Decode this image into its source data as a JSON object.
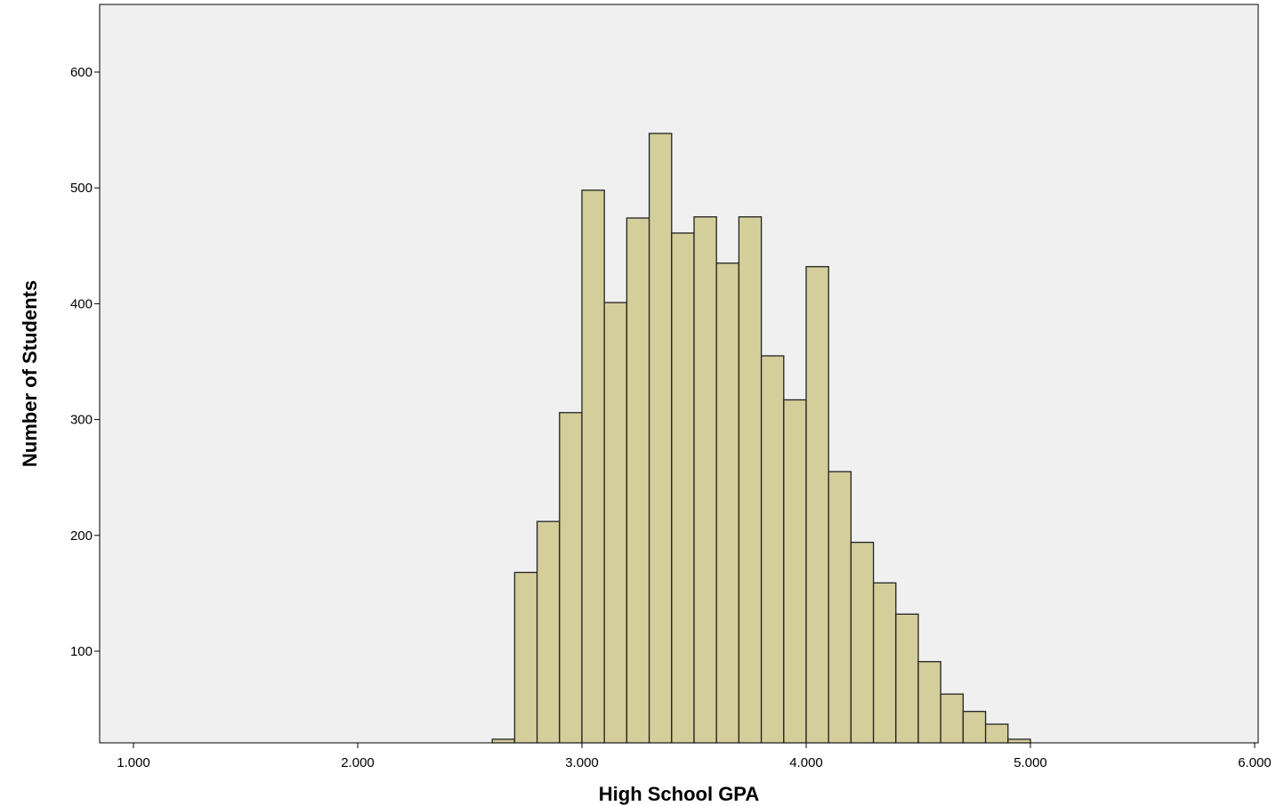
{
  "chart_data": {
    "type": "bar",
    "title": "",
    "xlabel": "High School GPA",
    "ylabel": "Number of Students",
    "xlim": [
      0.85,
      6.0
    ],
    "ylim": [
      20,
      650
    ],
    "grid": false,
    "x_ticks": [
      1.0,
      2.0,
      3.0,
      4.0,
      5.0,
      6.0
    ],
    "x_tick_labels": [
      "1.000",
      "2.000",
      "3.000",
      "4.000",
      "5.000",
      "6.000"
    ],
    "y_ticks": [
      100,
      200,
      300,
      400,
      500,
      600
    ],
    "y_tick_labels": [
      "100",
      "200",
      "300",
      "400",
      "500",
      "600"
    ],
    "bin_width": 0.1,
    "bin_starts": [
      2.6,
      2.7,
      2.8,
      2.9,
      3.0,
      3.1,
      3.2,
      3.3,
      3.4,
      3.5,
      3.6,
      3.7,
      3.8,
      3.9,
      4.0,
      4.1,
      4.2,
      4.3,
      4.4,
      4.5,
      4.6,
      4.7,
      4.8,
      4.9
    ],
    "values": [
      24,
      168,
      212,
      306,
      498,
      401,
      474,
      547,
      461,
      475,
      435,
      475,
      355,
      317,
      432,
      255,
      194,
      159,
      132,
      91,
      63,
      48,
      37,
      24
    ],
    "colors": {
      "plot_background": "#f0f0f0",
      "bar_fill": "#d3ce9a",
      "bar_stroke": "#222222",
      "axis": "#000000"
    }
  }
}
